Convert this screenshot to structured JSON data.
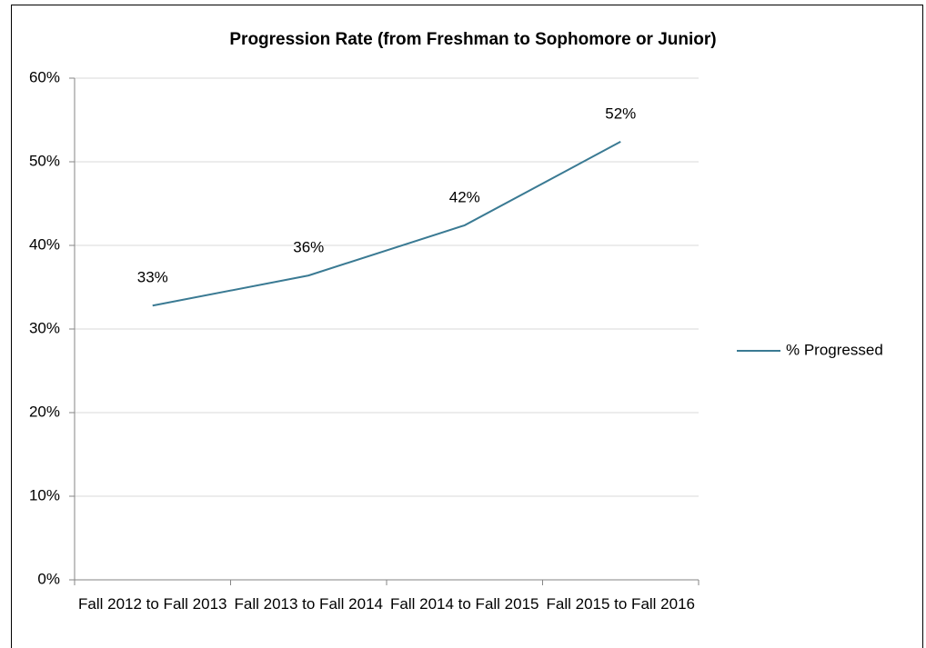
{
  "chart_data": {
    "type": "line",
    "title": "Progression Rate (from Freshman to Sophomore or Junior)",
    "categories": [
      "Fall 2012 to Fall 2013",
      "Fall 2013 to Fall 2014",
      "Fall 2014 to Fall 2015",
      "Fall 2015 to Fall 2016"
    ],
    "series": [
      {
        "name": "% Progressed",
        "color": "#3a7a93",
        "values": [
          32.8,
          36.4,
          42.4,
          52.4
        ],
        "value_labels": [
          "33%",
          "36%",
          "42%",
          "52%"
        ]
      }
    ],
    "ylim": [
      0,
      60
    ],
    "yticks": [
      {
        "value": 0,
        "label": "0%"
      },
      {
        "value": 10,
        "label": "10%"
      },
      {
        "value": 20,
        "label": "20%"
      },
      {
        "value": 30,
        "label": "30%"
      },
      {
        "value": 40,
        "label": "40%"
      },
      {
        "value": 50,
        "label": "50%"
      },
      {
        "value": 60,
        "label": "60%"
      }
    ],
    "grid": true,
    "legend": "right"
  }
}
